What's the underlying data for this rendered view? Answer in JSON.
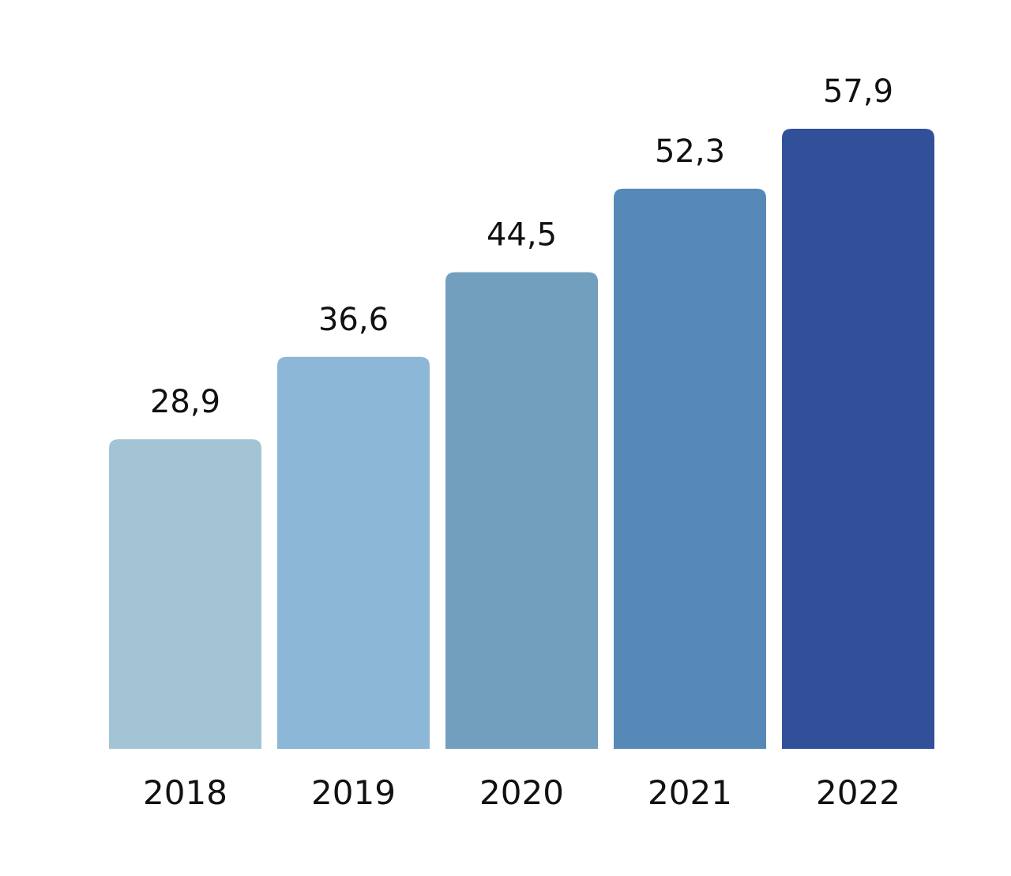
{
  "chart_data": {
    "type": "bar",
    "title": "",
    "xlabel": "",
    "ylabel": "",
    "categories": [
      "2018",
      "2019",
      "2020",
      "2021",
      "2022"
    ],
    "values": [
      28.9,
      36.6,
      44.5,
      52.3,
      57.9
    ],
    "value_labels": [
      "28,9",
      "36,6",
      "44,5",
      "52,3",
      "57,9"
    ],
    "colors": [
      "#a3c4d4",
      "#8cb7d6",
      "#729fbe",
      "#5689b8",
      "#324f99"
    ],
    "ylim": [
      0,
      57.9
    ],
    "grid": false,
    "legend": "none"
  }
}
